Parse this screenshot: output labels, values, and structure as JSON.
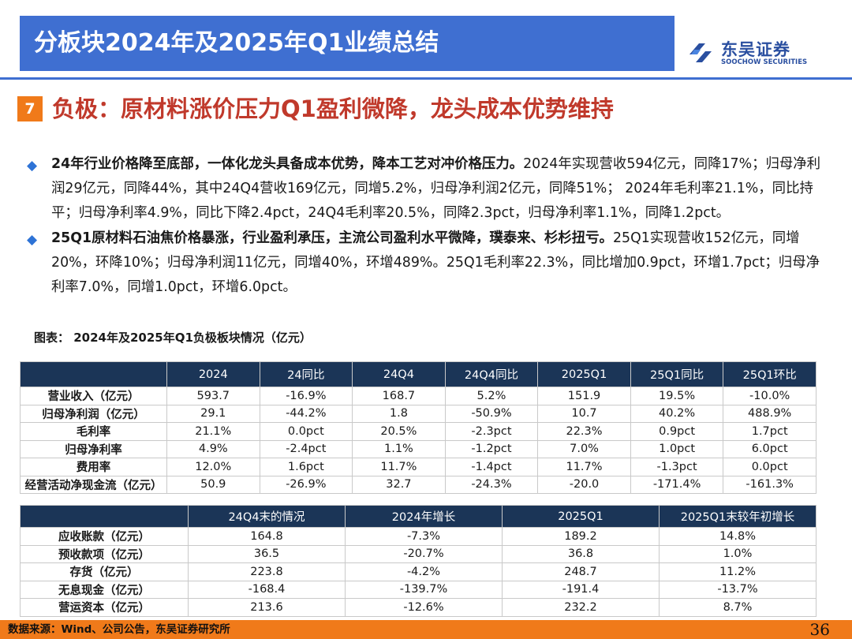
{
  "header": {
    "title": "分板块2024年及2025年Q1业绩总结",
    "logo_cn": "东吴证券",
    "logo_en": "SOOCHOW SECURITIES"
  },
  "section": {
    "badge": "7",
    "title": "负极：原材料涨价压力Q1盈利微降，龙头成本优势维持"
  },
  "bullets": [
    {
      "bold": "24年行业价格降至底部，一体化龙头具备成本优势，降本工艺对冲价格压力。",
      "text": "2024年实现营收594亿元，同降17%；归母净利润29亿元，同降44%，其中24Q4营收169亿元，同增5.2%，归母净利润2亿元，同降51%；  2024年毛利率21.1%，同比持平；归母净利率4.9%，同比下降2.4pct，24Q4毛利率20.5%，同降2.3pct，归母净利率1.1%，同降1.2pct。"
    },
    {
      "bold": "25Q1原材料石油焦价格暴涨，行业盈利承压，主流公司盈利水平微降，璞泰来、杉杉扭亏。",
      "text": "25Q1实现营收152亿元，同增20%，环降10%；归母净利润11亿元，同增40%，环增489%。25Q1毛利率22.3%，同比增加0.9pct，环增1.7pct；归母净利率7.0%，同增1.0pct，环增6.0pct。"
    }
  ],
  "figure_caption": "图表：  2024年及2025年Q1负极板块情况（亿元）",
  "table1": {
    "headers": [
      "",
      "2024",
      "24同比",
      "24Q4",
      "24Q4同比",
      "2025Q1",
      "25Q1同比",
      "25Q1环比"
    ],
    "rows": [
      [
        "营业收入（亿元）",
        "593.7",
        "-16.9%",
        "168.7",
        "5.2%",
        "151.9",
        "19.5%",
        "-10.0%"
      ],
      [
        "归母净利润（亿元）",
        "29.1",
        "-44.2%",
        "1.8",
        "-50.9%",
        "10.7",
        "40.2%",
        "488.9%"
      ],
      [
        "毛利率",
        "21.1%",
        "0.0pct",
        "20.5%",
        "-2.3pct",
        "22.3%",
        "0.9pct",
        "1.7pct"
      ],
      [
        "归母净利率",
        "4.9%",
        "-2.4pct",
        "1.1%",
        "-1.2pct",
        "7.0%",
        "1.0pct",
        "6.0pct"
      ],
      [
        "费用率",
        "12.0%",
        "1.6pct",
        "11.7%",
        "-1.4pct",
        "11.7%",
        "-1.3pct",
        "0.0pct"
      ],
      [
        "经营活动净现金流（亿元）",
        "50.9",
        "-26.9%",
        "32.7",
        "-24.3%",
        "-20.0",
        "-171.4%",
        "-161.3%"
      ]
    ]
  },
  "table2": {
    "headers": [
      "",
      "24Q4末的情况",
      "2024年增长",
      "2025Q1",
      "2025Q1末较年初增长"
    ],
    "rows": [
      [
        "应收账款（亿元）",
        "164.8",
        "-7.3%",
        "189.2",
        "14.8%"
      ],
      [
        "预收款项（亿元）",
        "36.5",
        "-20.7%",
        "36.8",
        "1.0%"
      ],
      [
        "存货（亿元）",
        "223.8",
        "-4.2%",
        "248.7",
        "11.2%"
      ],
      [
        "无息现金（亿元）",
        "-168.4",
        "-139.7%",
        "-191.4",
        "-13.7%"
      ],
      [
        "营运资本（亿元）",
        "213.6",
        "-12.6%",
        "232.2",
        "8.7%"
      ]
    ]
  },
  "footer": {
    "source": "数据来源：Wind、公司公告，东吴证券研究所",
    "page": "36"
  },
  "colors": {
    "header_blue": "#3f6fd1",
    "table_header_navy": "#1b3557",
    "accent_orange": "#f07a1a",
    "section_title_red": "#c0392b",
    "bullet_blue": "#2e73d6"
  },
  "icons": {
    "bullet": "diamond-bullet-icon",
    "logo": "soochow-logo-icon"
  }
}
